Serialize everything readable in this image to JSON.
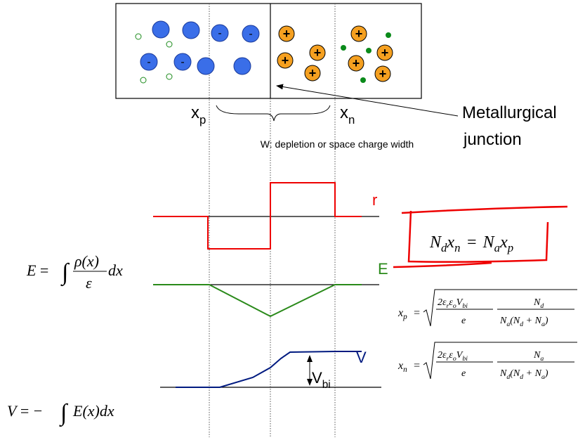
{
  "junction": {
    "p_charges": [
      "-",
      "-",
      "-",
      "-"
    ],
    "n_charges": [
      "+",
      "+",
      "+",
      "+",
      "+",
      "+",
      "+",
      "+"
    ]
  },
  "labels": {
    "xp": {
      "x": "x",
      "sub": "p"
    },
    "xn": {
      "x": "x",
      "sub": "n"
    },
    "width": "W: depletion or space charge width",
    "metallurgical": [
      "Metallurgical",
      "junction"
    ]
  },
  "plots": {
    "rho": "r",
    "field": "E",
    "potential": "V",
    "vbi": {
      "v": "V",
      "sub": "bi"
    }
  },
  "equations": {
    "balance": [
      "N",
      "d",
      "x",
      "n",
      "=",
      "N",
      "a",
      "x",
      "p"
    ],
    "e_field": [
      "E",
      "=",
      "∫",
      "ρ(x)",
      "ε",
      "dx"
    ],
    "v_def": [
      "V",
      "=",
      "−",
      "∫",
      "E(x)dx"
    ],
    "xp": [
      "x",
      "p",
      "=",
      "2ε",
      "r",
      "ε",
      "o",
      "V",
      "bi",
      "e",
      "N",
      "d",
      "N",
      "a",
      "(N",
      "d",
      " + N",
      "a",
      ")"
    ],
    "xn": [
      "x",
      "n",
      "=",
      "2ε",
      "r",
      "ε",
      "o",
      "V",
      "bi",
      "e",
      "N",
      "a",
      "N",
      "d",
      "(N",
      "d",
      " + N",
      "a",
      ")"
    ]
  }
}
